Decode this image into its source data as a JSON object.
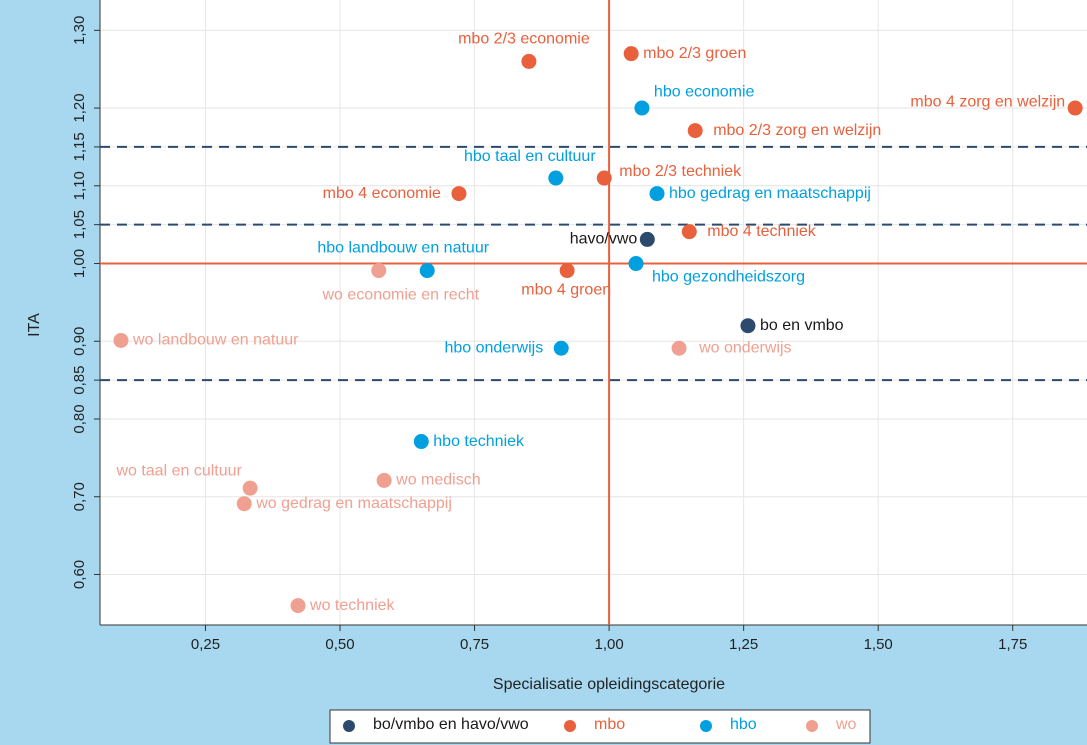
{
  "chart_data": {
    "type": "scatter",
    "xlabel": "Specialisatie opleidingscategorie",
    "ylabel": "ITA",
    "xlim": [
      0.054,
      1.888
    ],
    "ylim": [
      0.535,
      1.339
    ],
    "xticks": [
      {
        "value": 0.25,
        "label": "0,25"
      },
      {
        "value": 0.5,
        "label": "0,50"
      },
      {
        "value": 0.75,
        "label": "0,75"
      },
      {
        "value": 1.0,
        "label": "1,00"
      },
      {
        "value": 1.25,
        "label": "1,25"
      },
      {
        "value": 1.5,
        "label": "1,50"
      },
      {
        "value": 1.75,
        "label": "1,75"
      }
    ],
    "yticks": [
      {
        "value": 0.6,
        "label": "0,60"
      },
      {
        "value": 0.7,
        "label": "0,70"
      },
      {
        "value": 0.8,
        "label": "0,80"
      },
      {
        "value": 0.85,
        "label": "0,85"
      },
      {
        "value": 0.9,
        "label": "0,90"
      },
      {
        "value": 1.0,
        "label": "1,00"
      },
      {
        "value": 1.05,
        "label": "1,05"
      },
      {
        "value": 1.1,
        "label": "1,10"
      },
      {
        "value": 1.15,
        "label": "1,15"
      },
      {
        "value": 1.2,
        "label": "1,20"
      },
      {
        "value": 1.3,
        "label": "1,30"
      }
    ],
    "grid": true,
    "hlines": [
      {
        "value": 1.0,
        "color": "#e8603c",
        "style": "solid"
      },
      {
        "value": 0.85,
        "color": "#2c4a6e",
        "style": "dashed"
      },
      {
        "value": 1.05,
        "color": "#2c4a6e",
        "style": "dashed"
      },
      {
        "value": 1.15,
        "color": "#2c4a6e",
        "style": "dashed"
      }
    ],
    "vlines": [
      {
        "value": 1.0,
        "color": "#e8603c",
        "style": "solid"
      }
    ],
    "legend": "bottom",
    "series": [
      {
        "name": "bo/vmbo en havo/vwo",
        "color": "#2c4a6e",
        "labels": [
          "havo/vwo",
          "bo en vmbo"
        ],
        "x": [
          1.071,
          1.258
        ],
        "values": [
          1.031,
          0.92
        ]
      },
      {
        "name": "mbo",
        "color": "#e8603c",
        "labels": [
          "mbo 2/3 economie",
          "mbo 2/3 groen",
          "mbo 4 zorg en welzijn",
          "mbo 2/3 zorg en welzijn",
          "mbo 2/3 techniek",
          "mbo 4 economie",
          "mbo 4 techniek",
          "mbo 4 groen"
        ],
        "x": [
          0.851,
          1.041,
          1.866,
          1.16,
          0.991,
          0.721,
          1.149,
          0.922
        ],
        "values": [
          1.26,
          1.27,
          1.2,
          1.171,
          1.11,
          1.09,
          1.041,
          0.991
        ]
      },
      {
        "name": "hbo",
        "color": "#00a0e0",
        "labels": [
          "hbo economie",
          "hbo taal en cultuur",
          "hbo gedrag en maatschappij",
          "hbo landbouw en natuur",
          "hbo gezondheidszorg",
          "hbo onderwijs",
          "hbo techniek"
        ],
        "x": [
          1.061,
          0.901,
          1.089,
          0.662,
          1.05,
          0.911,
          0.651
        ],
        "values": [
          1.2,
          1.11,
          1.09,
          0.991,
          1.0,
          0.891,
          0.771
        ]
      },
      {
        "name": "wo",
        "color": "#f0a090",
        "labels": [
          "wo economie en recht",
          "wo landbouw en natuur",
          "wo onderwijs",
          "wo medisch",
          "wo taal en cultuur",
          "wo gedrag en maatschappij",
          "wo techniek"
        ],
        "x": [
          0.572,
          0.093,
          1.13,
          0.582,
          0.333,
          0.322,
          0.422
        ],
        "values": [
          0.991,
          0.901,
          0.891,
          0.721,
          0.711,
          0.691,
          0.56
        ]
      }
    ]
  }
}
